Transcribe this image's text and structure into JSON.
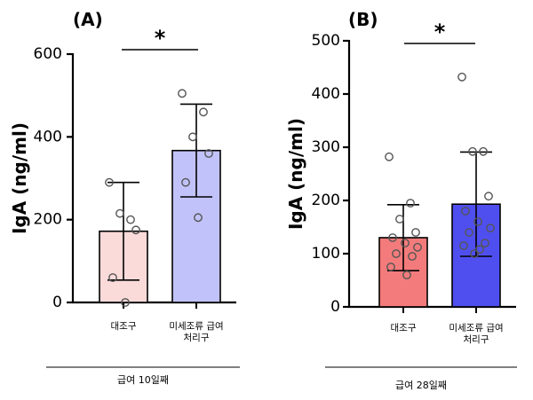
{
  "chart_data": [
    {
      "type": "bar",
      "panel_label": "(A)",
      "ylabel": "IgA (ng/ml)",
      "ylim": [
        0,
        600
      ],
      "yticks": [
        0,
        200,
        400,
        600
      ],
      "group_label": "급여 10일째",
      "significance": "*",
      "categories": [
        {
          "label": [
            "대조구"
          ],
          "mean": 172,
          "sd": 118,
          "color": "#fbdada",
          "points": [
            290,
            200,
            215,
            175,
            60,
            0
          ]
        },
        {
          "label": [
            "미세조류 급여",
            "처리구"
          ],
          "mean": 367,
          "sd": 112,
          "color": "#c2c2fb",
          "points": [
            505,
            460,
            400,
            360,
            290,
            205
          ]
        }
      ]
    },
    {
      "type": "bar",
      "panel_label": "(B)",
      "ylabel": "IgA (ng/ml)",
      "ylim": [
        0,
        500
      ],
      "yticks": [
        0,
        100,
        200,
        300,
        400,
        500
      ],
      "group_label": "급여 28일째",
      "significance": "*",
      "categories": [
        {
          "label": [
            "대조구"
          ],
          "mean": 130,
          "sd": 62,
          "color": "#f47b7b",
          "points": [
            282,
            195,
            165,
            140,
            130,
            120,
            112,
            100,
            95,
            75,
            60
          ]
        },
        {
          "label": [
            "미세조류 급여",
            "처리구"
          ],
          "mean": 193,
          "sd": 98,
          "color": "#4f4ff0",
          "points": [
            432,
            292,
            292,
            208,
            180,
            160,
            148,
            140,
            120,
            115,
            108,
            100
          ]
        }
      ]
    }
  ]
}
